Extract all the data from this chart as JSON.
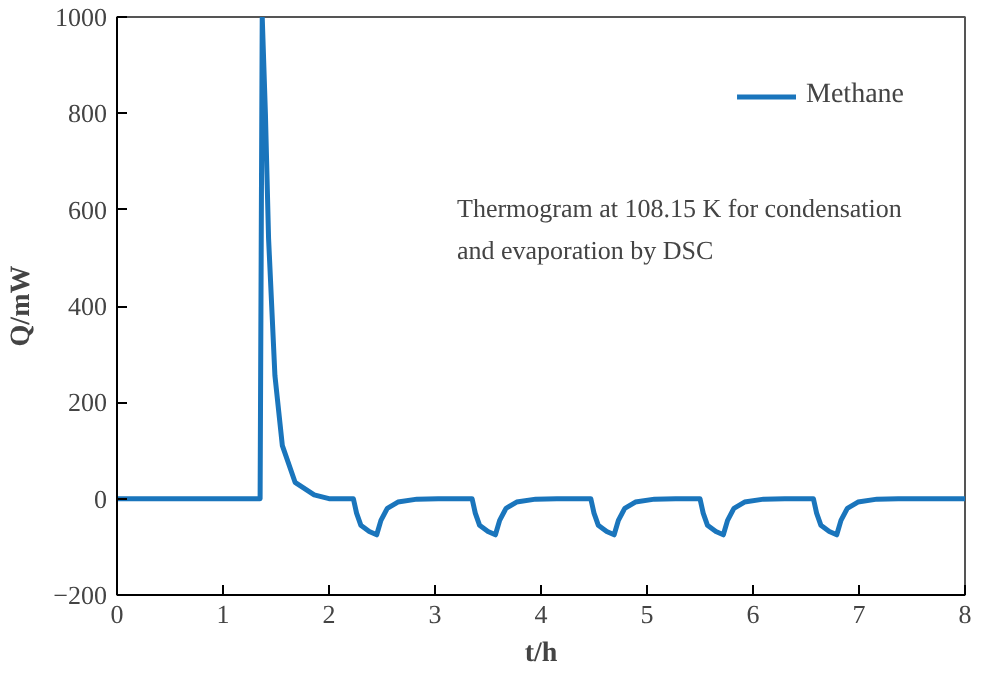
{
  "chart_data": {
    "type": "line",
    "xlabel": "t/h",
    "ylabel": "Q/mW",
    "annotations": [
      "Thermogram at 108.15 K for condensation\nand evaporation by DSC"
    ],
    "x": [
      0,
      1.35,
      1.37,
      1.4,
      1.43,
      1.49,
      1.56,
      1.68,
      1.86,
      2.0,
      2.23,
      2.26,
      2.3,
      2.38,
      2.45,
      2.49,
      2.55,
      2.65,
      2.83,
      3.03,
      3.35,
      3.38,
      3.42,
      3.5,
      3.57,
      3.61,
      3.67,
      3.77,
      3.95,
      4.15,
      4.47,
      4.5,
      4.54,
      4.62,
      4.69,
      4.73,
      4.79,
      4.89,
      5.07,
      5.27,
      5.5,
      5.53,
      5.57,
      5.65,
      5.72,
      5.76,
      5.82,
      5.92,
      6.1,
      6.3,
      6.57,
      6.6,
      6.64,
      6.72,
      6.79,
      6.83,
      6.89,
      6.99,
      7.17,
      7.37,
      8
    ],
    "series": [
      {
        "name": "Methane",
        "color": "#1a75bc",
        "values": [
          0,
          0,
          1000,
          800,
          540,
          255,
          110,
          34,
          8,
          0,
          0,
          -30,
          -55,
          -68,
          -75,
          -45,
          -20,
          -7,
          -1,
          0,
          0,
          -30,
          -55,
          -68,
          -75,
          -45,
          -20,
          -7,
          -1,
          0,
          0,
          -30,
          -55,
          -68,
          -75,
          -45,
          -20,
          -7,
          -1,
          0,
          0,
          -30,
          -55,
          -68,
          -75,
          -45,
          -20,
          -7,
          -1,
          0,
          0,
          -30,
          -55,
          -68,
          -75,
          -45,
          -20,
          -7,
          -1,
          0,
          0
        ]
      }
    ],
    "xlim": [
      0,
      8
    ],
    "ylim": [
      -200,
      1000
    ],
    "xticks": [
      0,
      1,
      2,
      3,
      4,
      5,
      6,
      7,
      8
    ],
    "yticks": [
      -200,
      0,
      200,
      400,
      600,
      800,
      1000
    ],
    "grid": false,
    "legend": "top right",
    "marker": "none",
    "line_style": "solid"
  }
}
